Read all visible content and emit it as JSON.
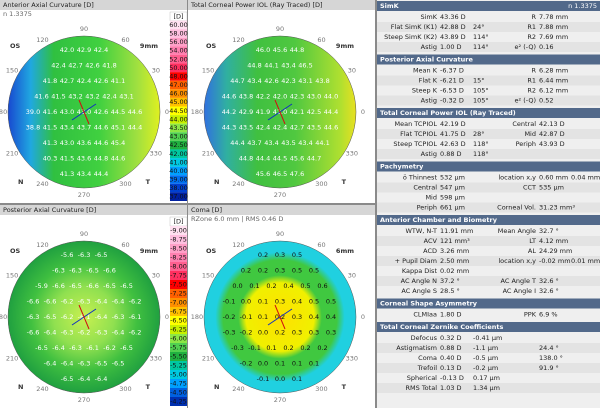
{
  "angles": [
    "90",
    "60",
    "30",
    "0",
    "330",
    "300",
    "270",
    "240",
    "210",
    "180",
    "150",
    "120"
  ],
  "maps": [
    {
      "title": "Anterior Axial Curvature  [D]",
      "subtitle": "n 1.3375",
      "eye": "OS",
      "nasal": "N",
      "temporal": "T",
      "zone": "9mm",
      "scale": {
        "unit": "[D]",
        "entries": [
          {
            "label": "60.00",
            "color": "#ffe0f0"
          },
          {
            "label": "58.00",
            "color": "#ffc0e0"
          },
          {
            "label": "56.00",
            "color": "#ffa0c8"
          },
          {
            "label": "54.00",
            "color": "#ff80b0"
          },
          {
            "label": "52.00",
            "color": "#ff6090"
          },
          {
            "label": "50.00",
            "color": "#ff3060"
          },
          {
            "label": "48.00",
            "color": "#ff0000"
          },
          {
            "label": "47.00",
            "color": "#ff6000"
          },
          {
            "label": "46.00",
            "color": "#ff9000"
          },
          {
            "label": "45.00",
            "color": "#ffc000"
          },
          {
            "label": "44.50",
            "color": "#ffff00"
          },
          {
            "label": "44.00",
            "color": "#c8f000"
          },
          {
            "label": "43.50",
            "color": "#8ce646"
          },
          {
            "label": "43.00",
            "color": "#50d050"
          },
          {
            "label": "42.50",
            "color": "#20b040"
          },
          {
            "label": "42.00",
            "color": "#00c8a0"
          },
          {
            "label": "41.00",
            "color": "#00c8e0"
          },
          {
            "label": "40.00",
            "color": "#00a0ff"
          },
          {
            "label": "39.00",
            "color": "#0070f0"
          },
          {
            "label": "38.00",
            "color": "#0040d0"
          },
          {
            "label": "37.00",
            "color": "#0020a0"
          }
        ]
      },
      "rows": [
        [
          "42.0",
          "42.9",
          "42.4"
        ],
        [
          "42.4",
          "42.7",
          "42.6",
          "41.8"
        ],
        [
          "41.8",
          "42.7",
          "42.4",
          "42.6",
          "41.1"
        ],
        [
          "41.6",
          "41.5",
          "43.2",
          "43.2",
          "42.4",
          "43.1"
        ],
        [
          "39.0",
          "41.6",
          "43.0",
          "43.0",
          "42.6",
          "44.5",
          "44.6"
        ],
        [
          "38.8",
          "41.5",
          "43.4",
          "43.7",
          "44.6",
          "45.1",
          "44.4"
        ],
        [
          "41.3",
          "43.0",
          "43.6",
          "44.6",
          "45.4"
        ],
        [
          "40.3",
          "41.5",
          "43.6",
          "44.8",
          "44.6"
        ],
        [
          "41.3",
          "43.4",
          "44.4"
        ]
      ]
    },
    {
      "title": "Total Corneal Power IOL (Ray Traced)  [D]",
      "eye": "OS",
      "nasal": "N",
      "temporal": "T",
      "zone": "9mm",
      "rows": [
        [
          "46.0",
          "45.6",
          "44.8"
        ],
        [
          "44.8",
          "44.1",
          "43.4",
          "46.5"
        ],
        [
          "44.7",
          "43.4",
          "42.6",
          "42.3",
          "43.1",
          "43.8"
        ],
        [
          "44.6",
          "43.8",
          "42.2",
          "42.0",
          "42.3",
          "43.0",
          "44.0"
        ],
        [
          "44.2",
          "42.9",
          "41.9",
          "42.0",
          "42.1",
          "42.5",
          "44.4"
        ],
        [
          "44.3",
          "43.5",
          "42.4",
          "42.4",
          "42.7",
          "43.5",
          "44.6"
        ],
        [
          "44.4",
          "43.7",
          "43.4",
          "43.5",
          "43.4",
          "44.1"
        ],
        [
          "44.8",
          "44.4",
          "44.5",
          "45.6",
          "44.7"
        ],
        [
          "45.6",
          "46.5",
          "47.6"
        ]
      ]
    },
    {
      "title": "Posterior Axial Curvature  [D]",
      "eye": "OS",
      "nasal": "N",
      "temporal": "T",
      "zone": "9mm",
      "scale": {
        "unit": "[D]",
        "entries": [
          {
            "label": "-9.00",
            "color": "#ffe0f0"
          },
          {
            "label": "-8.75",
            "color": "#ffc0e0"
          },
          {
            "label": "-8.50",
            "color": "#ffa0c8"
          },
          {
            "label": "-8.25",
            "color": "#ff80b0"
          },
          {
            "label": "-8.00",
            "color": "#ff6090"
          },
          {
            "label": "-7.75",
            "color": "#ff3060"
          },
          {
            "label": "-7.50",
            "color": "#ff0000"
          },
          {
            "label": "-7.25",
            "color": "#ff6000"
          },
          {
            "label": "-7.00",
            "color": "#ff9000"
          },
          {
            "label": "-6.75",
            "color": "#ffc000"
          },
          {
            "label": "-6.50",
            "color": "#ffff00"
          },
          {
            "label": "-6.25",
            "color": "#c8f000"
          },
          {
            "label": "-6.00",
            "color": "#8ce646"
          },
          {
            "label": "-5.75",
            "color": "#50d050"
          },
          {
            "label": "-5.50",
            "color": "#20b040"
          },
          {
            "label": "-5.25",
            "color": "#00c8a0"
          },
          {
            "label": "-5.00",
            "color": "#00c8e0"
          },
          {
            "label": "-4.75",
            "color": "#00a0ff"
          },
          {
            "label": "-4.50",
            "color": "#0060e0"
          },
          {
            "label": "-4.25",
            "color": "#0030b0"
          }
        ]
      },
      "rows": [
        [
          "-5.6",
          "-6.3",
          "-6.5"
        ],
        [
          "-6.3",
          "-6.3",
          "-6.5",
          "-6.6"
        ],
        [
          "-5.9",
          "-6.6",
          "-6.5",
          "-6.6",
          "-6.5",
          "-6.5"
        ],
        [
          "-6.6",
          "-6.6",
          "-6.2",
          "-6.3",
          "-6.4",
          "-6.4",
          "-6.2"
        ],
        [
          "-6.3",
          "-6.5",
          "-6.2",
          "-6.1",
          "-6.4",
          "-6.3",
          "-6.1"
        ],
        [
          "-6.6",
          "-6.4",
          "-6.3",
          "-6.2",
          "-6.3",
          "-6.4",
          "-6.2"
        ],
        [
          "-6.5",
          "-6.4",
          "-6.3",
          "-6.1",
          "-6.2",
          "-6.5"
        ],
        [
          "-6.4",
          "-6.4",
          "-6.3",
          "-6.5",
          "-6.5"
        ],
        [
          "-6.5",
          "-6.4",
          "-6.4"
        ]
      ]
    },
    {
      "title": "Coma  [D]",
      "subtitle": "RZone 6.0 mm | RMS 0.46 D",
      "eye": "OS",
      "nasal": "N",
      "temporal": "T",
      "zone": "6mm",
      "rows": [
        [
          "0.2",
          "0.3",
          "0.5"
        ],
        [
          "0.2",
          "0.2",
          "0.3",
          "0.5",
          "0.5"
        ],
        [
          "0.0",
          "0.1",
          "0.2",
          "0.4",
          "0.5",
          "0.6"
        ],
        [
          "-0.1",
          "0.0",
          "0.1",
          "0.3",
          "0.4",
          "0.5",
          "0.5"
        ],
        [
          "-0.2",
          "-0.1",
          "0.1",
          "0.2",
          "0.3",
          "0.4",
          "0.4"
        ],
        [
          "-0.3",
          "-0.2",
          "0.0",
          "0.2",
          "0.3",
          "0.3",
          "0.3"
        ],
        [
          "-0.3",
          "-0.1",
          "0.1",
          "0.2",
          "0.2",
          "0.2"
        ],
        [
          "-0.2",
          "0.0",
          "0.1",
          "0.1",
          "0.1"
        ],
        [
          "-0.1",
          "0.0",
          "0.1"
        ]
      ]
    }
  ],
  "panel": {
    "note": "n 1.3375",
    "sections": [
      {
        "title": "SimK",
        "rows": [
          {
            "l": [
              "SimK",
              "43.36 D"
            ],
            "r": [
              "R",
              "7.78 mm"
            ]
          },
          {
            "l": [
              "Flat SimK (K1)",
              "42.88 D",
              "24°"
            ],
            "r": [
              "R1",
              "7.88 mm"
            ]
          },
          {
            "l": [
              "Steep SimK (K2)",
              "43.89 D",
              "114°"
            ],
            "r": [
              "R2",
              "7.69 mm"
            ]
          },
          {
            "l": [
              "Astig",
              "1.00 D",
              "114°"
            ],
            "r": [
              "e² (-Q)",
              "0.16"
            ]
          }
        ]
      },
      {
        "title": "Posterior Axial Curvature",
        "rows": [
          {
            "l": [
              "Mean K",
              "-6.37 D"
            ],
            "r": [
              "R",
              "6.28 mm"
            ]
          },
          {
            "l": [
              "Flat K",
              "-6.21 D",
              "15°"
            ],
            "r": [
              "R1",
              "6.44 mm"
            ]
          },
          {
            "l": [
              "Steep K",
              "-6.53 D",
              "105°"
            ],
            "r": [
              "R2",
              "6.12 mm"
            ]
          },
          {
            "l": [
              "Astig",
              "-0.32 D",
              "105°"
            ],
            "r": [
              "e² (-Q)",
              "0.52"
            ]
          }
        ]
      },
      {
        "title": "Total Corneal Power IOL (Ray Traced)",
        "rows": [
          {
            "l": [
              "Mean TCPIOL",
              "42.19 D"
            ],
            "r": [
              "Central",
              "42.13 D"
            ]
          },
          {
            "l": [
              "Flat TCPIOL",
              "41.75 D",
              "28°"
            ],
            "r": [
              "Mid",
              "42.87 D"
            ]
          },
          {
            "l": [
              "Steep TCPIOL",
              "42.63 D",
              "118°"
            ],
            "r": [
              "Periph",
              "43.93 D"
            ]
          },
          {
            "l": [
              "Astig",
              "0.88 D",
              "118°"
            ]
          }
        ]
      },
      {
        "title": "Pachymetry",
        "rows": [
          {
            "l": [
              "ö Thinnest",
              "532 µm"
            ],
            "r": [
              "location x,y",
              "0.60 mm",
              "0.04 mm"
            ]
          },
          {
            "l": [
              "Central",
              "547 µm"
            ],
            "r": [
              "CCT",
              "535 µm"
            ]
          },
          {
            "l": [
              "Mid",
              "598 µm"
            ]
          },
          {
            "l": [
              "Periph",
              "661 µm"
            ],
            "r": [
              "Corneal Vol.",
              "31.23 mm³"
            ]
          }
        ]
      },
      {
        "title": "Anterior Chamber and Biometry",
        "rows": [
          {
            "l": [
              "WTW, N-T",
              "11.91 mm"
            ],
            "r": [
              "Mean Angle",
              "32.7 °"
            ]
          },
          {
            "l": [
              "ACV",
              "121 mm³"
            ],
            "r": [
              "LT",
              "4.12 mm"
            ]
          },
          {
            "l": [
              "ACD",
              "3.26 mm"
            ],
            "r": [
              "AL",
              "24.29 mm"
            ]
          },
          {
            "l": [
              "+ Pupil Diam",
              "2.50 mm"
            ],
            "r": [
              "location x,y",
              "-0.02 mm",
              "0.01 mm"
            ]
          },
          {
            "l": [
              "Kappa Dist",
              "0.02 mm"
            ]
          },
          {
            "l": [
              "AC Angle N",
              "37.2 °"
            ],
            "r": [
              "AC Angle T",
              "32.6 °"
            ]
          },
          {
            "l": [
              "AC Angle S",
              "28.5 °"
            ],
            "r": [
              "AC Angle I",
              "32.6 °"
            ]
          }
        ]
      },
      {
        "title": "Corneal Shape Asymmetry",
        "rows": [
          {
            "l": [
              "CLMIaa",
              "1.80 D"
            ],
            "r": [
              "PPK",
              "6.9 %"
            ]
          }
        ]
      },
      {
        "title": "Total Corneal Zernike Coefficients",
        "rows": [
          {
            "l": [
              "Defocus",
              "0.32 D",
              "-0.41 µm"
            ]
          },
          {
            "l": [
              "Astigmatism",
              "0.88 D",
              "-1.1 µm"
            ],
            "r": [
              "24.4 °"
            ]
          },
          {
            "l": [
              "Coma",
              "0.40 D",
              "-0.5 µm"
            ],
            "r": [
              "138.0 °"
            ]
          },
          {
            "l": [
              "Trefoil",
              "0.13 D",
              "-0.2 µm"
            ],
            "r": [
              "91.9 °"
            ]
          },
          {
            "l": [
              "Spherical",
              "-0.13 D",
              "0.17 µm"
            ]
          },
          {
            "l": [
              "RMS Total",
              "1.03 D",
              "1.34 µm"
            ]
          }
        ]
      }
    ]
  }
}
